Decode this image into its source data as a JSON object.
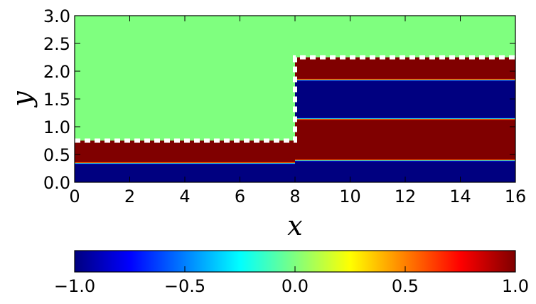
{
  "chart_data": {
    "type": "heatmap",
    "title": "",
    "xlabel": "x",
    "ylabel": "y",
    "xlim": [
      0,
      16
    ],
    "ylim": [
      0,
      3
    ],
    "x_ticks": [
      "0",
      "2",
      "4",
      "6",
      "8",
      "10",
      "12",
      "14",
      "16"
    ],
    "y_ticks": [
      "0.0",
      "0.5",
      "1.0",
      "1.5",
      "2.0",
      "2.5",
      "3.0"
    ],
    "colormap": "jet",
    "background_value": 0.0,
    "colorbar": {
      "orientation": "horizontal",
      "range": [
        -1,
        1
      ],
      "tick_labels": [
        "−1.0",
        "−0.5",
        "0.0",
        "0.5",
        "1.0"
      ]
    },
    "regions": [
      {
        "x_range": [
          0,
          8
        ],
        "bands": [
          {
            "y_range": [
              0,
              0.35
            ],
            "value": -1
          },
          {
            "y_range": [
              0.35,
              0.75
            ],
            "value": 1
          }
        ]
      },
      {
        "x_range": [
          8,
          16
        ],
        "bands": [
          {
            "y_range": [
              0,
              0.4
            ],
            "value": -1
          },
          {
            "y_range": [
              0.4,
              1.15
            ],
            "value": 1
          },
          {
            "y_range": [
              1.15,
              1.85
            ],
            "value": -1
          },
          {
            "y_range": [
              1.85,
              2.25
            ],
            "value": 1
          }
        ]
      }
    ],
    "interface": {
      "style": "white dashed",
      "points": [
        [
          0,
          0.75
        ],
        [
          8,
          0.75
        ],
        [
          8,
          2.25
        ],
        [
          16,
          2.25
        ]
      ]
    }
  }
}
